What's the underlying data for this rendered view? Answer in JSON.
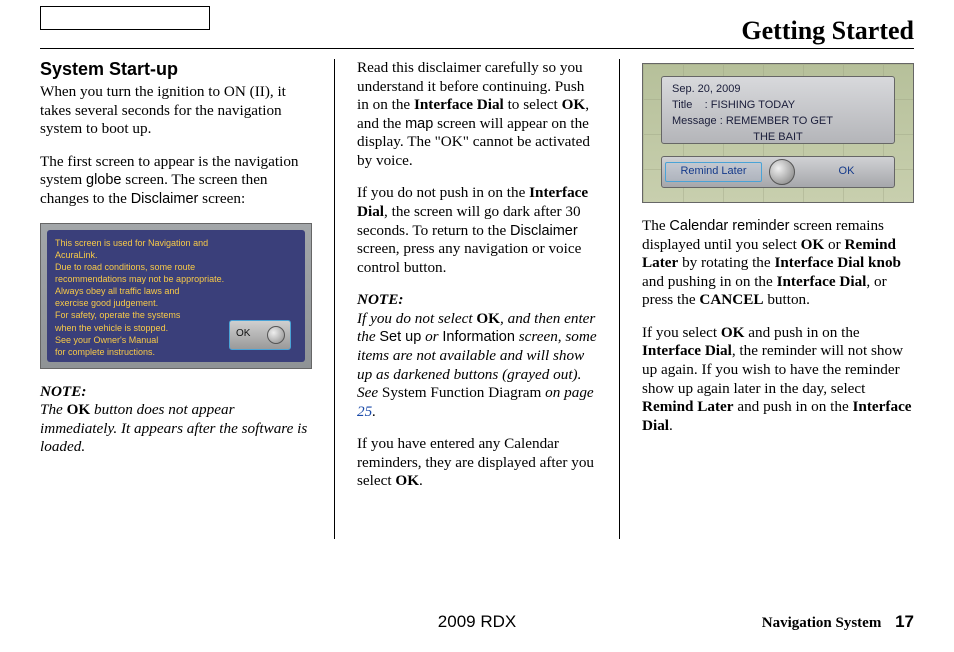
{
  "header": {
    "title": "Getting Started"
  },
  "col1": {
    "h2": "System Start-up",
    "p1a": "When you turn the ignition to ON (II), it takes several seconds for the navigation system to boot up.",
    "p2a": "The first screen to appear is the navigation system ",
    "p2b": "globe",
    "p2c": " screen. The screen then changes to the ",
    "p2d": "Disclaimer",
    "p2e": " screen:",
    "disc_text": "This screen is used for Navigation and\nAcuraLink.\nDue to road conditions, some route\nrecommendations may not be appropriate.\nAlways obey all traffic laws and\nexercise good judgement.\nFor safety, operate the systems\nwhen the vehicle is stopped.\nSee your Owner's Manual\nfor complete instructions.",
    "disc_ok": "OK",
    "note_label": "NOTE:",
    "note1a": "The ",
    "note1b": "OK",
    "note1c": " button does not appear immediately. It appears after the software is loaded."
  },
  "col2": {
    "p1a": "Read this disclaimer carefully so you understand it before continuing. Push in on the ",
    "p1b": "Interface Dial",
    "p1c": " to select ",
    "p1d": "OK",
    "p1e": ", and the ",
    "p1f": "map",
    "p1g": " screen will appear on the display. The \"OK\" cannot be activated by voice.",
    "p2a": "If you do not push in on the ",
    "p2b": "Interface Dial",
    "p2c": ", the screen will go dark after 30 seconds. To return to the ",
    "p2d": "Disclaimer",
    "p2e": " screen, press any navigation or voice control button.",
    "note_label": "NOTE:",
    "note2a": "If you do not select ",
    "note2b": "OK",
    "note2c": ", and then enter the ",
    "note2d": "Set up",
    "note2e": " or ",
    "note2f": "Information",
    "note2g": " screen, some items are not available and will show up as darkened buttons (grayed out). See ",
    "note2h": "System Function Diagram",
    "note2i": " on page ",
    "note2j": "25",
    "note2k": ".",
    "p3a": "If you have entered any Calendar reminders, they are displayed after you select ",
    "p3b": "OK",
    "p3c": "."
  },
  "col3": {
    "cal_date": "Sep. 20, 2009",
    "cal_title_label": "Title",
    "cal_title": ": FISHING TODAY",
    "cal_msg_label": "Message",
    "cal_msg": ": REMEMBER TO GET",
    "cal_msg2": "THE BAIT",
    "cal_remind": "Remind Later",
    "cal_ok": "OK",
    "p1a": "The ",
    "p1b": "Calendar reminder",
    "p1c": " screen remains displayed until you select ",
    "p1d": "OK",
    "p1e": " or ",
    "p1f": "Remind Later",
    "p1g": " by rotating the ",
    "p1h": "Interface Dial knob",
    "p1i": " and pushing in on the ",
    "p1j": "Interface Dial",
    "p1k": ", or press the ",
    "p1l": "CANCEL",
    "p1m": " button.",
    "p2a": "If you select ",
    "p2b": "OK",
    "p2c": " and push in on the ",
    "p2d": "Interface Dial",
    "p2e": ", the reminder will not show up again. If you wish to have the reminder show up again later in the day, select ",
    "p2f": "Remind Later",
    "p2g": " and push in on the ",
    "p2h": "Interface Dial",
    "p2i": "."
  },
  "footer": {
    "center": "2009  RDX",
    "right_label": "Navigation System",
    "page": "17"
  }
}
